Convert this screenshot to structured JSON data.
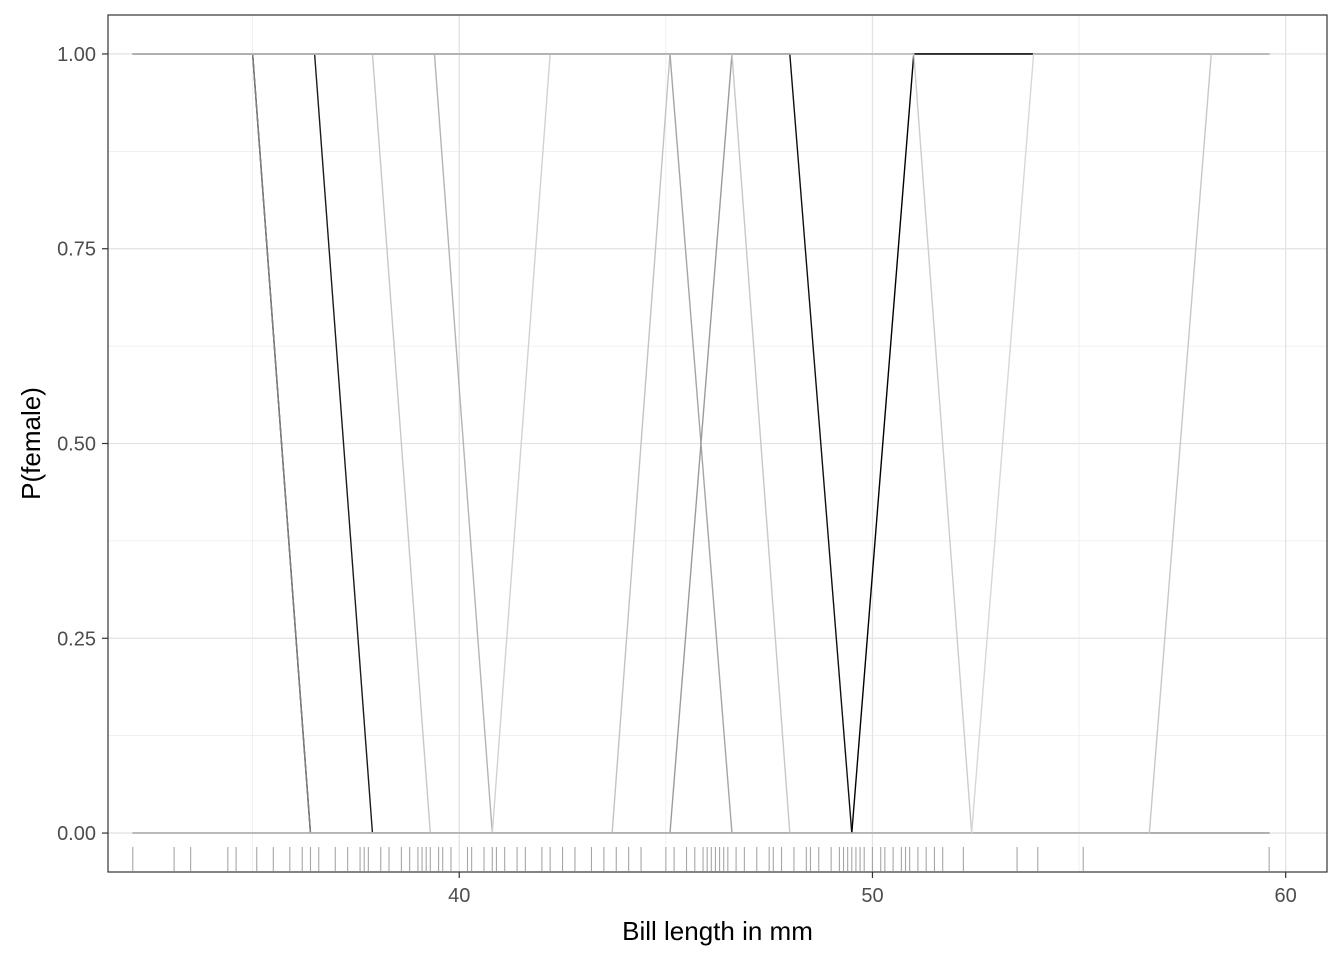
{
  "chart_data": {
    "type": "line",
    "title": "",
    "xlabel": "Bill length in mm",
    "ylabel": "P(female)",
    "xlim": [
      31.5,
      61.0
    ],
    "ylim": [
      -0.05,
      1.05
    ],
    "grid": true,
    "legend": "none",
    "x_ticks": [
      {
        "value": 40,
        "label": "40"
      },
      {
        "value": 50,
        "label": "50"
      },
      {
        "value": 60,
        "label": "60"
      }
    ],
    "y_ticks": [
      {
        "value": 0.0,
        "label": "0.00"
      },
      {
        "value": 0.25,
        "label": "0.25"
      },
      {
        "value": 0.5,
        "label": "0.50"
      },
      {
        "value": 0.75,
        "label": "0.75"
      },
      {
        "value": 1.0,
        "label": "1.00"
      }
    ],
    "series": [
      {
        "color": "#000000",
        "x": [
          32.1,
          35.0,
          36.4,
          59.6
        ],
        "y": [
          1,
          1,
          0,
          0
        ]
      },
      {
        "color": "#000000",
        "x": [
          32.1,
          59.6
        ],
        "y": [
          1,
          1
        ]
      },
      {
        "color": "#000000",
        "x": [
          32.1,
          59.6
        ],
        "y": [
          0,
          0
        ]
      },
      {
        "color": "#7f7f7f",
        "x": [
          32.1,
          35.0,
          36.4,
          59.6
        ],
        "y": [
          1,
          1,
          0,
          0
        ]
      },
      {
        "color": "#1a1a1a",
        "x": [
          32.1,
          36.5,
          37.9,
          59.6
        ],
        "y": [
          1,
          1,
          0,
          0
        ]
      },
      {
        "color": "#c8c8c8",
        "x": [
          32.1,
          37.9,
          39.3,
          59.6
        ],
        "y": [
          1,
          1,
          0,
          0
        ]
      },
      {
        "color": "#b4b4b4",
        "x": [
          32.1,
          39.4,
          40.8,
          59.6
        ],
        "y": [
          1,
          1,
          0,
          0
        ]
      },
      {
        "color": "#d2d2d2",
        "x": [
          32.1,
          40.8,
          42.2,
          59.6
        ],
        "y": [
          0,
          0,
          1,
          1
        ]
      },
      {
        "color": "#c3c3c3",
        "x": [
          32.1,
          43.7,
          45.1,
          59.6
        ],
        "y": [
          0,
          0,
          1,
          1
        ]
      },
      {
        "color": "#a5a5a5",
        "x": [
          32.1,
          45.1,
          46.6,
          59.6
        ],
        "y": [
          1,
          1,
          0,
          0
        ]
      },
      {
        "color": "#9b9b9b",
        "x": [
          32.1,
          45.1,
          46.6,
          59.6
        ],
        "y": [
          0,
          0,
          1,
          1
        ]
      },
      {
        "color": "#c8c8c8",
        "x": [
          32.1,
          46.6,
          48.0,
          59.6
        ],
        "y": [
          1,
          1,
          0,
          0
        ]
      },
      {
        "color": "#0f0f0f",
        "x": [
          32.1,
          48.0,
          49.5,
          59.6
        ],
        "y": [
          1,
          1,
          0,
          0
        ]
      },
      {
        "color": "#000000",
        "x": [
          32.1,
          49.5,
          51.0,
          59.6
        ],
        "y": [
          0,
          0,
          1,
          1
        ]
      },
      {
        "color": "#cdcdcd",
        "x": [
          32.1,
          51.0,
          52.4,
          59.6
        ],
        "y": [
          1,
          1,
          0,
          0
        ]
      },
      {
        "color": "#d7d7d7",
        "x": [
          32.1,
          52.4,
          53.9,
          59.6
        ],
        "y": [
          0,
          0,
          1,
          1
        ]
      },
      {
        "color": "#c8c8c8",
        "x": [
          32.1,
          56.7,
          58.2,
          59.6
        ],
        "y": [
          0,
          0,
          1,
          1
        ]
      }
    ],
    "rug": {
      "color": "#a6a6a6",
      "x": [
        32.1,
        33.1,
        33.5,
        34.4,
        34.6,
        35.1,
        35.5,
        35.9,
        36.2,
        36.4,
        36.6,
        37.0,
        37.3,
        37.6,
        37.7,
        37.8,
        38.1,
        38.3,
        38.6,
        38.8,
        39.0,
        39.1,
        39.2,
        39.3,
        39.5,
        39.6,
        39.8,
        40.2,
        40.3,
        40.6,
        40.8,
        40.9,
        41.1,
        41.4,
        41.6,
        42.0,
        42.2,
        42.5,
        42.8,
        43.2,
        43.5,
        43.8,
        44.1,
        44.4,
        45.0,
        45.2,
        45.5,
        45.7,
        45.9,
        46.0,
        46.1,
        46.2,
        46.3,
        46.4,
        46.5,
        46.7,
        46.9,
        47.2,
        47.5,
        47.6,
        47.8,
        48.1,
        48.4,
        48.5,
        48.7,
        49.0,
        49.2,
        49.3,
        49.4,
        49.5,
        49.6,
        49.7,
        49.8,
        50.0,
        50.2,
        50.3,
        50.5,
        50.7,
        50.8,
        50.9,
        51.1,
        51.3,
        51.5,
        51.7,
        52.2,
        53.5,
        54.0,
        55.1,
        59.6
      ]
    }
  }
}
